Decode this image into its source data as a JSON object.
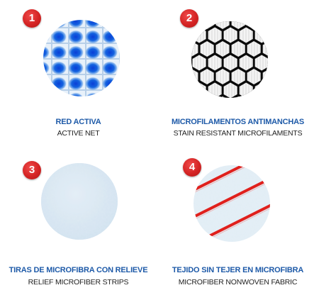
{
  "items": [
    {
      "number": "1",
      "title": "RED ACTIVA",
      "subtitle": "ACTIVE NET",
      "swatch_icon": "blue-dot-net-texture"
    },
    {
      "number": "2",
      "title": "MICROFILAMENTOS ANTIMANCHAS",
      "subtitle": "STAIN RESISTANT MICROFILAMENTS",
      "swatch_icon": "black-hexagon-mesh-texture"
    },
    {
      "number": "3",
      "title": "TIRAS DE MICROFIBRA CON RELIEVE",
      "subtitle": "RELIEF MICROFIBER STRIPS",
      "swatch_icon": "light-blue-fiber-texture"
    },
    {
      "number": "4",
      "title": "TEJIDO SIN TEJER EN MICROFIBRA",
      "subtitle": "MICROFIBER NONWOVEN FABRIC",
      "swatch_icon": "red-stripe-fabric-texture"
    }
  ],
  "colors": {
    "badge": "#d42424",
    "title": "#1e5aa8",
    "subtitle": "#222222"
  }
}
